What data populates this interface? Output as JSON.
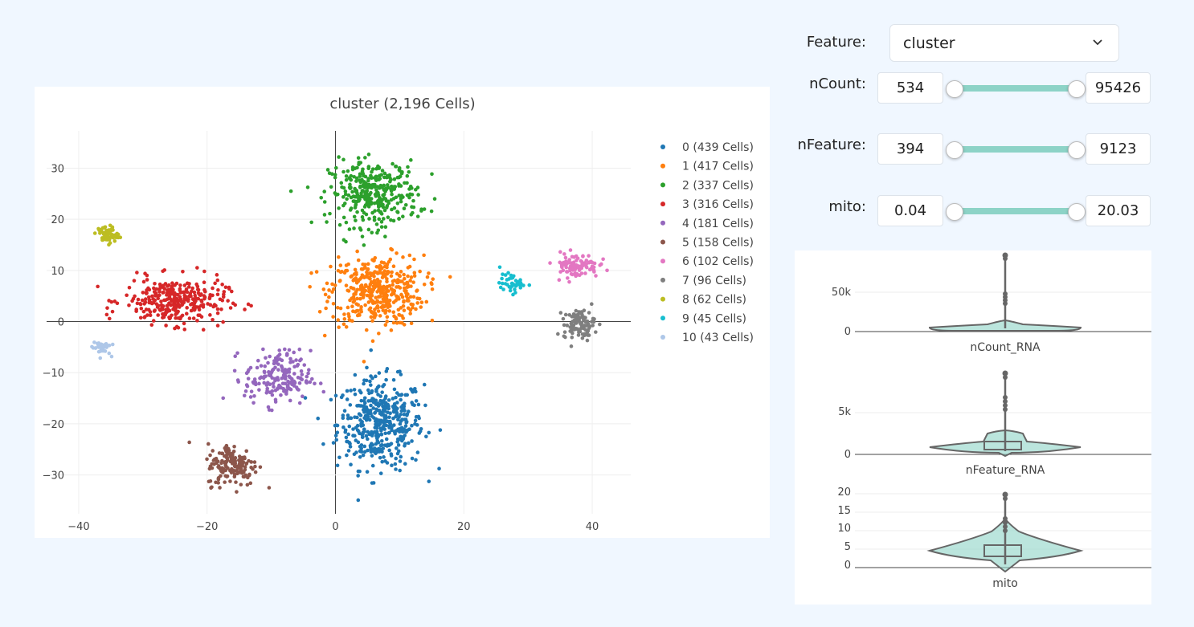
{
  "controls": {
    "feature_label": "Feature:",
    "feature_value": "cluster",
    "sliders": [
      {
        "label": "nCount:",
        "min": "534",
        "max": "95426",
        "low_fraction": 0,
        "high_fraction": 1
      },
      {
        "label": "nFeature:",
        "min": "394",
        "max": "9123",
        "low_fraction": 0,
        "high_fraction": 1
      },
      {
        "label": "mito:",
        "min": "0.04",
        "max": "20.03",
        "low_fraction": 0,
        "high_fraction": 1
      }
    ]
  },
  "chart_data": [
    {
      "type": "scatter",
      "title": "cluster (2,196 Cells)",
      "xlim": [
        -45,
        46
      ],
      "ylim": [
        -37.6,
        37.3
      ],
      "xticks": [
        "−40",
        "−20",
        "0",
        "20",
        "40"
      ],
      "xtick_values": [
        -40,
        -20,
        0,
        20,
        40
      ],
      "yticks": [
        "30",
        "20",
        "10",
        "0",
        "−10",
        "−20",
        "−30"
      ],
      "ytick_values": [
        30,
        20,
        10,
        0,
        -10,
        -20,
        -30
      ],
      "grid": true,
      "legend_position": "right",
      "series": [
        {
          "name": "0 (439 Cells)",
          "count": 439,
          "color": "#1f77b4",
          "center": [
            7,
            -20
          ],
          "spread": [
            4.2,
            5.5
          ]
        },
        {
          "name": "1 (417 Cells)",
          "count": 417,
          "color": "#ff7f0e",
          "center": [
            6.5,
            6
          ],
          "spread": [
            4.5,
            4.3
          ]
        },
        {
          "name": "2 (337 Cells)",
          "count": 337,
          "color": "#2ca02c",
          "center": [
            6,
            25
          ],
          "spread": [
            4.3,
            4
          ]
        },
        {
          "name": "3 (316 Cells)",
          "count": 316,
          "color": "#d62728",
          "center": [
            -25,
            4
          ],
          "spread": [
            5,
            2.8
          ]
        },
        {
          "name": "4 (181 Cells)",
          "count": 181,
          "color": "#9467bd",
          "center": [
            -9,
            -11
          ],
          "spread": [
            3.2,
            3.3
          ]
        },
        {
          "name": "5 (158 Cells)",
          "count": 158,
          "color": "#8c564b",
          "center": [
            -16,
            -28
          ],
          "spread": [
            2.5,
            2.6
          ]
        },
        {
          "name": "6 (102 Cells)",
          "count": 102,
          "color": "#e377c2",
          "center": [
            37.5,
            11
          ],
          "spread": [
            2.2,
            1.5
          ]
        },
        {
          "name": "7 (96 Cells)",
          "count": 96,
          "color": "#7f7f7f",
          "center": [
            38,
            -0.5
          ],
          "spread": [
            1.5,
            1.8
          ]
        },
        {
          "name": "8 (62 Cells)",
          "count": 62,
          "color": "#bcbd22",
          "center": [
            -35.5,
            17
          ],
          "spread": [
            1,
            1.1
          ]
        },
        {
          "name": "9 (45 Cells)",
          "count": 45,
          "color": "#17becf",
          "center": [
            27.5,
            7.5
          ],
          "spread": [
            1.2,
            1.1
          ]
        },
        {
          "name": "10 (43 Cells)",
          "count": 43,
          "color": "#aec7e8",
          "center": [
            -36.5,
            -5
          ],
          "spread": [
            0.9,
            0.9
          ]
        }
      ]
    },
    {
      "type": "violin",
      "panels": [
        {
          "xlabel": "nCount_RNA",
          "yticks": [
            "50k",
            "0"
          ],
          "ytick_values": [
            50000,
            0
          ],
          "max": 95426
        },
        {
          "xlabel": "nFeature_RNA",
          "yticks": [
            "5k",
            "0"
          ],
          "ytick_values": [
            5000,
            0
          ],
          "max": 9123
        },
        {
          "xlabel": "mito",
          "yticks": [
            "20",
            "15",
            "10",
            "5",
            "0"
          ],
          "ytick_values": [
            20,
            15,
            10,
            5,
            0
          ],
          "max": 20.03
        }
      ],
      "fill_color": "#8dd3c7"
    }
  ]
}
